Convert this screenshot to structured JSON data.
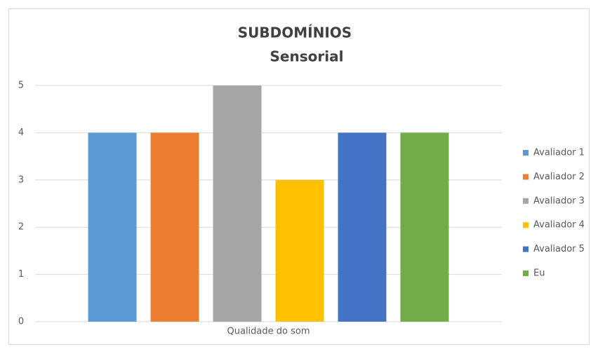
{
  "chart_data": {
    "type": "bar",
    "title": "SUBDOMÍNIOS",
    "subtitle": "Sensorial",
    "categories": [
      "Qualidade do som"
    ],
    "series": [
      {
        "name": "Avaliador 1",
        "color": "#5b9bd5",
        "values": [
          4
        ]
      },
      {
        "name": "Avaliador 2",
        "color": "#ed7d31",
        "values": [
          4
        ]
      },
      {
        "name": "Avaliador 3",
        "color": "#a5a5a5",
        "values": [
          5
        ]
      },
      {
        "name": "Avaliador 4",
        "color": "#ffc000",
        "values": [
          3
        ]
      },
      {
        "name": "Avaliador 5",
        "color": "#4472c4",
        "values": [
          4
        ]
      },
      {
        "name": "Eu",
        "color": "#70ad47",
        "values": [
          4
        ]
      }
    ],
    "ylim": [
      0,
      5
    ],
    "yticks": [
      0,
      1,
      2,
      3,
      4,
      5
    ],
    "grid": true,
    "legend": "right"
  }
}
